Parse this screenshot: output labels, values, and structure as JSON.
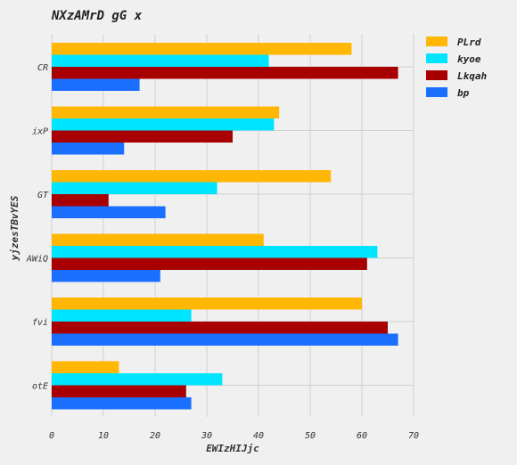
{
  "chart_data": {
    "type": "bar",
    "orientation": "horizontal",
    "title": "NXzAMrD gG x",
    "xlabel": "EWIzHIJjc",
    "ylabel": "yjzesTBvYES",
    "xlim": [
      0,
      70
    ],
    "xticks": [
      0,
      10,
      20,
      30,
      40,
      50,
      60,
      70
    ],
    "categories": [
      "CR",
      "ixP",
      "GT",
      "AWiQ",
      "fvi",
      "otE"
    ],
    "series": [
      {
        "name": "PLrd",
        "color": "#ffb703",
        "values": [
          58,
          44,
          54,
          41,
          60,
          13
        ]
      },
      {
        "name": "kyoe",
        "color": "#00e5ff",
        "values": [
          42,
          43,
          32,
          63,
          27,
          33
        ]
      },
      {
        "name": "Lkqah",
        "color": "#a80000",
        "values": [
          67,
          35,
          11,
          61,
          65,
          26
        ]
      },
      {
        "name": "bp",
        "color": "#1a6fff",
        "values": [
          17,
          14,
          22,
          21,
          67,
          27
        ]
      }
    ],
    "grid": true,
    "legend_position": "top-right"
  }
}
